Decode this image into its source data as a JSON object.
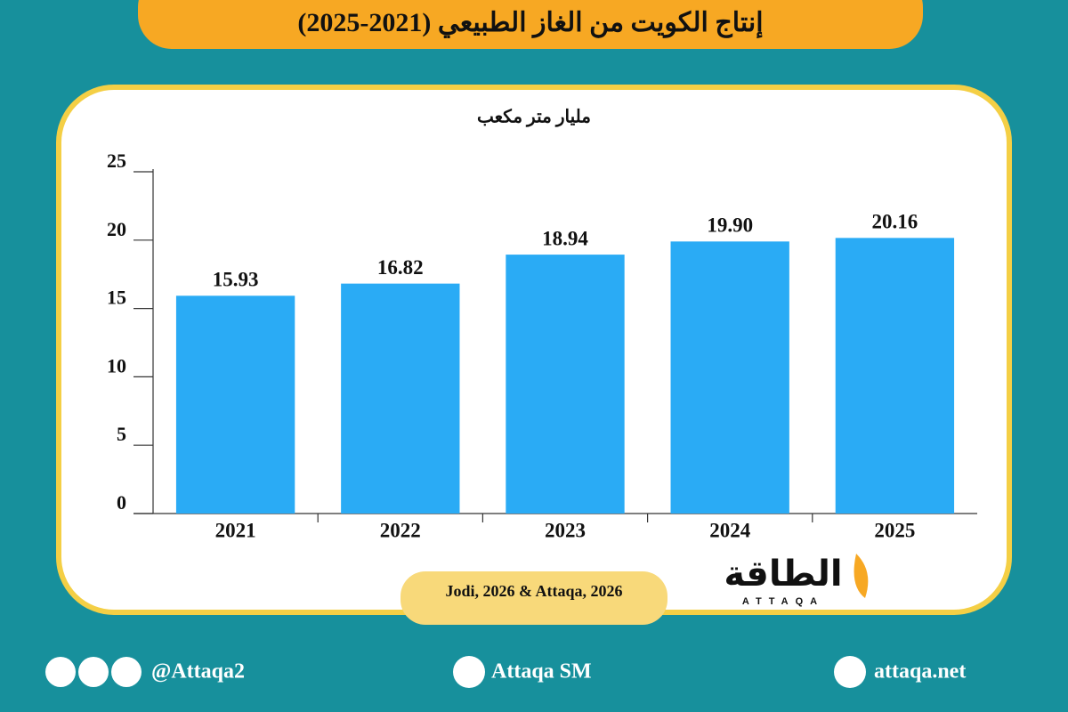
{
  "chart_data": {
    "type": "bar",
    "title": "إنتاج الكويت من الغاز الطبيعي (2021-2025)",
    "y_label": "مليار متر مكعب",
    "categories": [
      "2021",
      "2022",
      "2023",
      "2024",
      "2025"
    ],
    "values": [
      15.93,
      16.82,
      18.94,
      19.9,
      20.16
    ],
    "value_labels": [
      "15.93",
      "16.82",
      "18.94",
      "19.90",
      "20.16"
    ],
    "color": "#2aabf5",
    "ylim": [
      0,
      25
    ],
    "yticks": [
      0,
      5,
      10,
      15,
      20,
      25
    ],
    "grid": false,
    "source": "Jodi, 2026 & Attaqa, 2026"
  },
  "logo": {
    "name": "الطاقة",
    "latin": "ATTAQA"
  },
  "footer": {
    "social": "@Attaqa2",
    "youtube": "Attaqa SM",
    "website": "attaqa.net"
  }
}
